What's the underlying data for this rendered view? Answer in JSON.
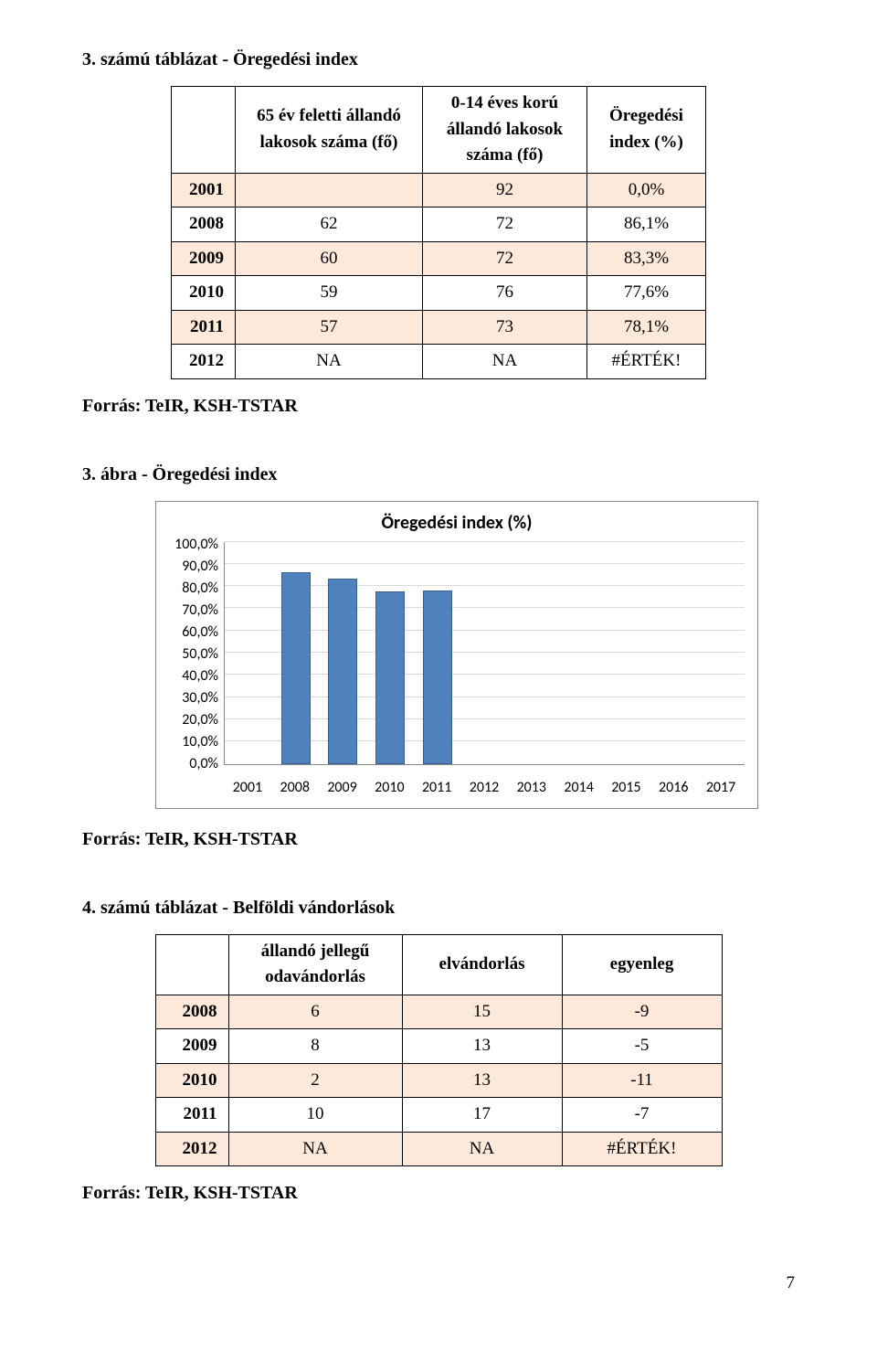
{
  "table1": {
    "heading": "3. számú táblázat - Öregedési index",
    "headers": [
      "",
      "65 év feletti állandó lakosok száma (fő)",
      "0-14 éves korú állandó lakosok száma (fő)",
      "Öregedési index (%)"
    ],
    "rows": [
      [
        "2001",
        "",
        "92",
        "0,0%"
      ],
      [
        "2008",
        "62",
        "72",
        "86,1%"
      ],
      [
        "2009",
        "60",
        "72",
        "83,3%"
      ],
      [
        "2010",
        "59",
        "76",
        "77,6%"
      ],
      [
        "2011",
        "57",
        "73",
        "78,1%"
      ],
      [
        "2012",
        "NA",
        "NA",
        "#ÉRTÉK!"
      ]
    ],
    "source": "Forrás: TeIR, KSH-TSTAR"
  },
  "chart": {
    "heading": "3. ábra - Öregedési index",
    "title": "Öregedési index (%)",
    "type": "bar",
    "ylim": [
      0,
      100
    ],
    "ytick_step": 10,
    "yticks": [
      "100,0%",
      "90,0%",
      "80,0%",
      "70,0%",
      "60,0%",
      "50,0%",
      "40,0%",
      "30,0%",
      "20,0%",
      "10,0%",
      "0,0%"
    ],
    "categories": [
      "2001",
      "2008",
      "2009",
      "2010",
      "2011",
      "2012",
      "2013",
      "2014",
      "2015",
      "2016",
      "2017"
    ],
    "values": [
      0,
      86.1,
      83.3,
      77.6,
      78.1,
      0,
      0,
      0,
      0,
      0,
      0
    ],
    "bar_color": "#4f81bd",
    "bar_border_color": "#3a5f8a",
    "grid_color": "#d9d9d9",
    "axis_color": "#888888",
    "background_color": "#ffffff",
    "title_fontsize": 20,
    "tick_fontsize": 16,
    "bar_width": 0.62,
    "source": "Forrás: TeIR, KSH-TSTAR"
  },
  "table2": {
    "heading": "4. számú táblázat - Belföldi vándorlások",
    "headers": [
      "",
      "állandó jellegű odavándorlás",
      "elvándorlás",
      "egyenleg"
    ],
    "rows": [
      [
        "2008",
        "6",
        "15",
        "-9"
      ],
      [
        "2009",
        "8",
        "13",
        "-5"
      ],
      [
        "2010",
        "2",
        "13",
        "-11"
      ],
      [
        "2011",
        "10",
        "17",
        "-7"
      ],
      [
        "2012",
        "NA",
        "NA",
        "#ÉRTÉK!"
      ]
    ],
    "source": "Forrás: TeIR, KSH-TSTAR"
  },
  "page_number": "7",
  "row_colors": {
    "odd": "#fde9d9",
    "even": "#ffffff"
  }
}
